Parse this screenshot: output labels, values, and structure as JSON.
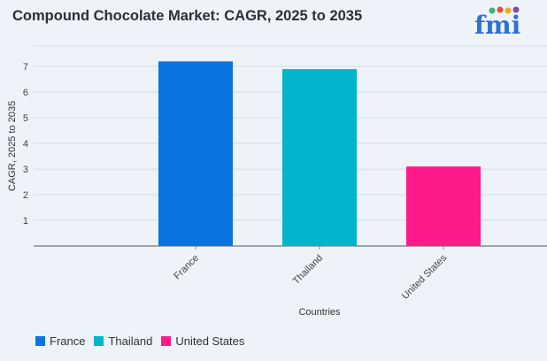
{
  "title": "Compound Chocolate Market: CAGR, 2025 to 2035",
  "logo": {
    "text": "fmi",
    "colors": [
      "#2e6fd8",
      "#e84d3d",
      "#f2a81d",
      "#3bb56b",
      "#8e44ad"
    ]
  },
  "chart_data": {
    "type": "bar",
    "title": "Compound Chocolate Market: CAGR, 2025 to 2035",
    "xlabel": "Countries",
    "ylabel": "CAGR, 2025 to 2035",
    "categories": [
      "France",
      "Thailand",
      "United States"
    ],
    "values": [
      7.2,
      6.9,
      3.1
    ],
    "colors": [
      "#0a74e0",
      "#00b5cc",
      "#ff1a8c"
    ],
    "ylim": [
      0,
      7.8
    ],
    "yticks": [
      1,
      2,
      3,
      4,
      5,
      6,
      7
    ],
    "grid": true,
    "legend": "bottom-left"
  }
}
